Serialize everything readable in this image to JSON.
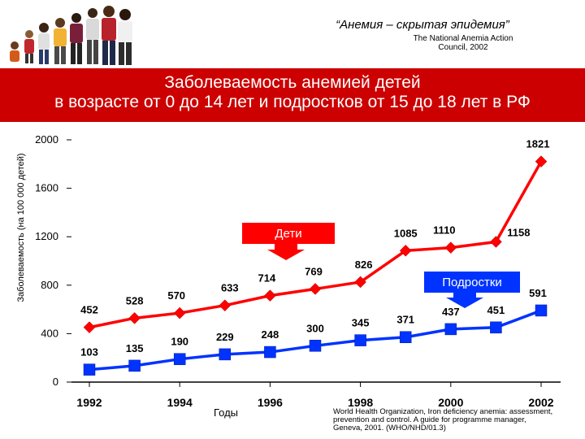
{
  "header": {
    "quote": "“Анемия – скрытая эпидемия”",
    "council_line1": "The National Anemia Action",
    "council_line2": "Council, 2002"
  },
  "banner": {
    "line1": "Заболеваемость анемией детей",
    "line2": "в возрасте от 0 до 14 лет и подростков от 15 до 18 лет в РФ"
  },
  "colors": {
    "banner": "#cc0000",
    "children": "#ff0000",
    "teens": "#0033ff"
  },
  "callouts": {
    "children": "Дети",
    "teens": "Подростки"
  },
  "source": {
    "line1": "World Health Organization, Iron deficiency anemia: assessment,",
    "line2": "prevention and control. A guide for programme manager,",
    "line3": "Geneva, 2001. (WHO/NHD/01.3)"
  },
  "chart_data": {
    "type": "line",
    "xlabel": "Годы",
    "ylabel": "Заболеваемость (на 100 000 детей)",
    "x": [
      1992,
      1993,
      1994,
      1995,
      1996,
      1997,
      1998,
      1999,
      2000,
      2001,
      2002
    ],
    "xticks": [
      1992,
      1994,
      1996,
      1998,
      2000,
      2002
    ],
    "yticks": [
      0,
      400,
      800,
      1200,
      1600,
      2000
    ],
    "ylim": [
      0,
      2000
    ],
    "xlim": [
      1992,
      2002
    ],
    "legend": "none",
    "series": [
      {
        "name": "Дети",
        "values": [
          452,
          528,
          570,
          633,
          714,
          769,
          826,
          1085,
          1110,
          1158,
          1821
        ],
        "marker": "diamond"
      },
      {
        "name": "Подростки",
        "values": [
          103,
          135,
          190,
          229,
          248,
          300,
          345,
          371,
          437,
          451,
          591
        ],
        "marker": "square"
      }
    ]
  }
}
